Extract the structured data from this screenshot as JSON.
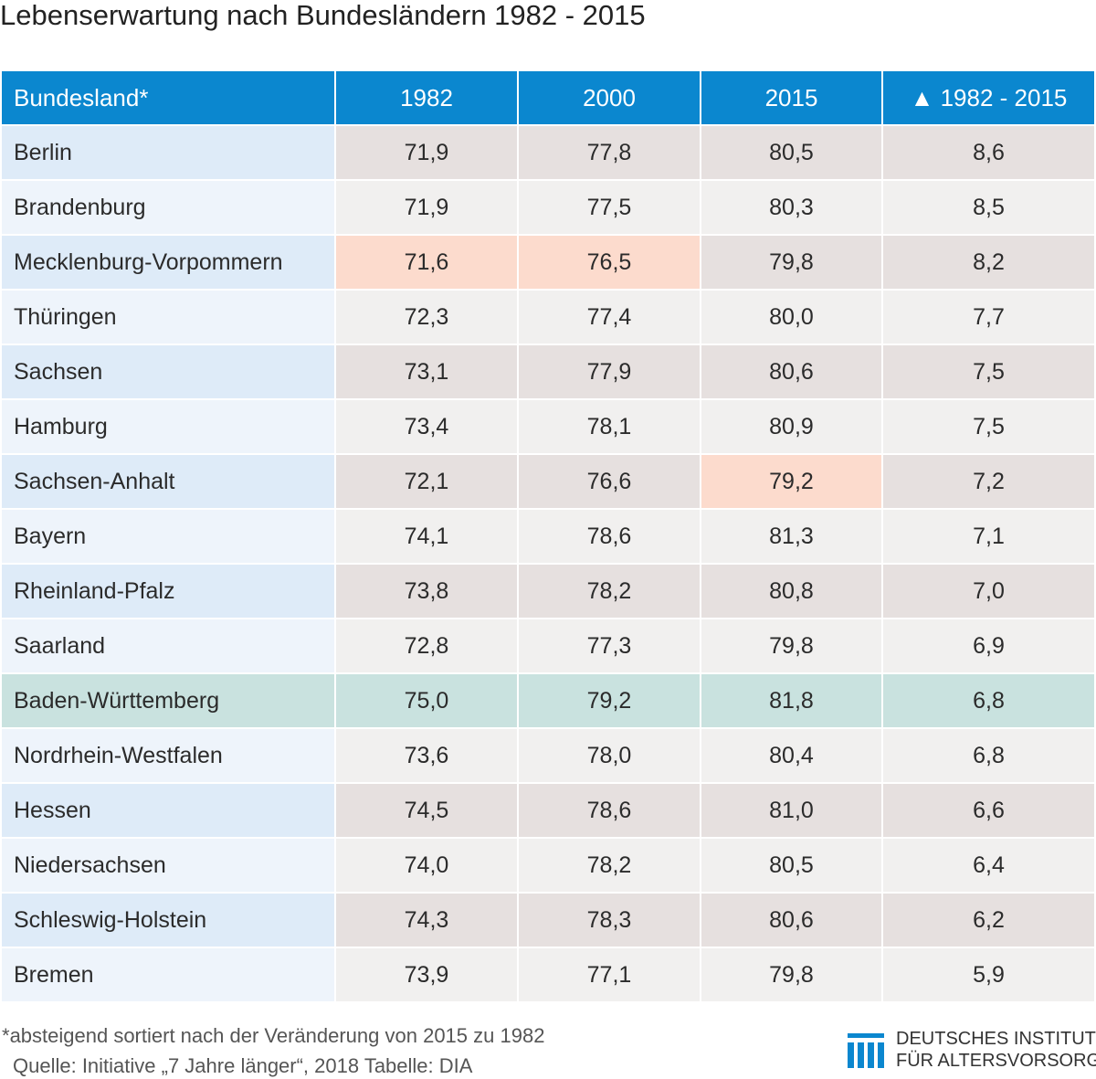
{
  "title": "Lebenserwartung nach Bundesländern 1982 - 2015",
  "table": {
    "headers": [
      "Bundesland*",
      "1982",
      "2000",
      "2015",
      "▲ 1982 - 2015"
    ],
    "rows": [
      {
        "state": "Berlin",
        "v1982": "71,9",
        "v2000": "77,8",
        "v2015": "80,5",
        "diff": "8,6"
      },
      {
        "state": "Brandenburg",
        "v1982": "71,9",
        "v2000": "77,5",
        "v2015": "80,3",
        "diff": "8,5"
      },
      {
        "state": "Mecklenburg-Vorpommern",
        "v1982": "71,6",
        "v2000": "76,5",
        "v2015": "79,8",
        "diff": "8,2"
      },
      {
        "state": "Thüringen",
        "v1982": "72,3",
        "v2000": "77,4",
        "v2015": "80,0",
        "diff": "7,7"
      },
      {
        "state": "Sachsen",
        "v1982": "73,1",
        "v2000": "77,9",
        "v2015": "80,6",
        "diff": "7,5"
      },
      {
        "state": "Hamburg",
        "v1982": "73,4",
        "v2000": "78,1",
        "v2015": "80,9",
        "diff": "7,5"
      },
      {
        "state": "Sachsen-Anhalt",
        "v1982": "72,1",
        "v2000": "76,6",
        "v2015": "79,2",
        "diff": "7,2"
      },
      {
        "state": "Bayern",
        "v1982": "74,1",
        "v2000": "78,6",
        "v2015": "81,3",
        "diff": "7,1"
      },
      {
        "state": "Rheinland-Pfalz",
        "v1982": "73,8",
        "v2000": "78,2",
        "v2015": "80,8",
        "diff": "7,0"
      },
      {
        "state": "Saarland",
        "v1982": "72,8",
        "v2000": "77,3",
        "v2015": "79,8",
        "diff": "6,9"
      },
      {
        "state": "Baden-Württemberg",
        "v1982": "75,0",
        "v2000": "79,2",
        "v2015": "81,8",
        "diff": "6,8"
      },
      {
        "state": "Nordrhein-Westfalen",
        "v1982": "73,6",
        "v2000": "78,0",
        "v2015": "80,4",
        "diff": "6,8"
      },
      {
        "state": "Hessen",
        "v1982": "74,5",
        "v2000": "78,6",
        "v2015": "81,0",
        "diff": "6,6"
      },
      {
        "state": "Niedersachsen",
        "v1982": "74,0",
        "v2000": "78,2",
        "v2015": "80,5",
        "diff": "6,4"
      },
      {
        "state": "Schleswig-Holstein",
        "v1982": "74,3",
        "v2000": "78,3",
        "v2015": "80,6",
        "diff": "6,2"
      },
      {
        "state": "Bremen",
        "v1982": "73,9",
        "v2000": "77,1",
        "v2015": "79,8",
        "diff": "5,9"
      }
    ]
  },
  "chart_data": {
    "type": "table",
    "title": "Lebenserwartung nach Bundesländern 1982 - 2015",
    "columns": [
      "Bundesland*",
      "1982",
      "2000",
      "2015",
      "▲ 1982 - 2015"
    ],
    "rows": [
      [
        "Berlin",
        71.9,
        77.8,
        80.5,
        8.6
      ],
      [
        "Brandenburg",
        71.9,
        77.5,
        80.3,
        8.5
      ],
      [
        "Mecklenburg-Vorpommern",
        71.6,
        76.5,
        79.8,
        8.2
      ],
      [
        "Thüringen",
        72.3,
        77.4,
        80.0,
        7.7
      ],
      [
        "Sachsen",
        73.1,
        77.9,
        80.6,
        7.5
      ],
      [
        "Hamburg",
        73.4,
        78.1,
        80.9,
        7.5
      ],
      [
        "Sachsen-Anhalt",
        72.1,
        76.6,
        79.2,
        7.2
      ],
      [
        "Bayern",
        74.1,
        78.6,
        81.3,
        7.1
      ],
      [
        "Rheinland-Pfalz",
        73.8,
        78.2,
        80.8,
        7.0
      ],
      [
        "Saarland",
        72.8,
        77.3,
        79.8,
        6.9
      ],
      [
        "Baden-Württemberg",
        75.0,
        79.2,
        81.8,
        6.8
      ],
      [
        "Nordrhein-Westfalen",
        73.6,
        78.0,
        80.4,
        6.8
      ],
      [
        "Hessen",
        74.5,
        78.6,
        81.0,
        6.6
      ],
      [
        "Niedersachsen",
        74.0,
        78.2,
        80.5,
        6.4
      ],
      [
        "Schleswig-Holstein",
        74.3,
        78.3,
        80.6,
        6.2
      ],
      [
        "Bremen",
        73.9,
        77.1,
        79.8,
        5.9
      ]
    ],
    "highlight_low_color": "#fcdbcd",
    "highlight_high_color": "#c9e2df",
    "header_color": "#0b87cf"
  },
  "footer": {
    "note": "absteigend sortiert nach der Veränderung von 2015 zu 1982",
    "source": "Quelle: Initiative „7 Jahre länger“, 2018  Tabelle: DIA"
  },
  "logo": {
    "line1": "DEUTSCHES INSTITUT",
    "line2": "FÜR ALTERSVORSORGE",
    "icon": "dia-columns-logo-icon",
    "color": "#0b87cf"
  }
}
